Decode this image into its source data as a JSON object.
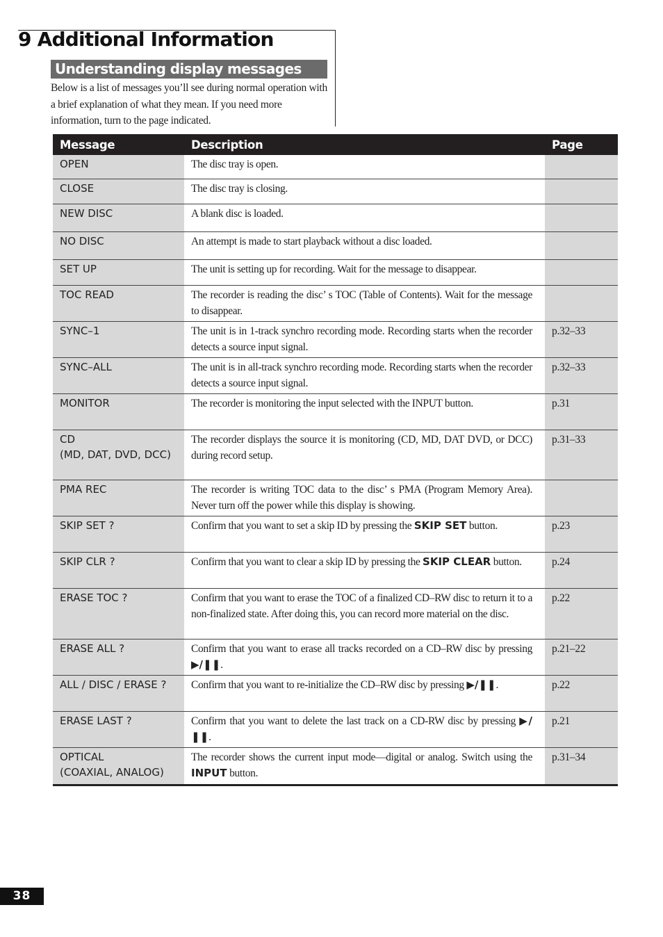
{
  "chapter_title": "9 Additional Information",
  "section_title": "Understanding display messages",
  "intro": "Below is a list of messages you’ll see during normal operation with a brief explanation of what they mean. If you need more information, turn to the page indicated.",
  "table": {
    "headers": {
      "message": "Message",
      "description": "Description",
      "page": "Page"
    },
    "rows": [
      {
        "message": "OPEN",
        "desc": "The disc tray is open.",
        "bold": "",
        "after": "",
        "page": ""
      },
      {
        "message": "CLOSE",
        "desc": "The disc tray is closing.",
        "bold": "",
        "after": "",
        "page": ""
      },
      {
        "message": "NEW DISC",
        "desc": "A blank disc is loaded.",
        "bold": "",
        "after": "",
        "page": ""
      },
      {
        "message": "NO DISC",
        "desc": "An attempt is made to start playback without a disc loaded.",
        "bold": "",
        "after": "",
        "page": ""
      },
      {
        "message": "SET UP",
        "desc": "The unit is setting up for recording. Wait for the message to disappear.",
        "bold": "",
        "after": "",
        "page": ""
      },
      {
        "message": "TOC READ",
        "desc": "The recorder is reading the disc’ s TOC (Table of Contents). Wait for the message to disappear.",
        "bold": "",
        "after": "",
        "page": ""
      },
      {
        "message": "SYNC–1",
        "desc": "The unit is in 1-track synchro recording mode. Recording starts when the recorder detects a source input signal.",
        "bold": "",
        "after": "",
        "page": "p.32–33"
      },
      {
        "message": "SYNC–ALL",
        "desc": "The unit is in all-track synchro recording mode. Recording starts when the recorder detects a source input signal.",
        "bold": "",
        "after": "",
        "page": "p.32–33"
      },
      {
        "message": "MONITOR",
        "desc": "The recorder is monitoring the input selected with the INPUT button.",
        "bold": "",
        "after": "",
        "page": "p.31"
      },
      {
        "message": "CD\n(MD, DAT, DVD, DCC)",
        "desc": "The recorder displays the source it is monitoring (CD, MD, DAT DVD, or DCC) during record setup.",
        "bold": "",
        "after": "",
        "page": "p.31–33"
      },
      {
        "message": "PMA REC",
        "desc": "The recorder is writing TOC data to the disc’ s PMA (Program Memory Area). Never turn off the power while this display is showing.",
        "bold": "",
        "after": "",
        "page": ""
      },
      {
        "message": "SKIP SET ?",
        "desc": "Confirm that you want to set a skip ID by pressing the ",
        "bold": "SKIP SET",
        "after": " button.",
        "page": "p.23"
      },
      {
        "message": "SKIP CLR ?",
        "desc": "Confirm that you want to clear a skip ID by pressing the ",
        "bold": "SKIP CLEAR",
        "after": " button.",
        "page": "p.24"
      },
      {
        "message": "ERASE TOC ?",
        "desc": "Confirm that you want to erase the TOC of a finalized CD–RW disc to return it to a non-finalized state. After doing this, you can record more material on the disc.",
        "bold": "",
        "after": "",
        "page": "p.22"
      },
      {
        "message": "ERASE ALL ?",
        "desc": "Confirm that you want to erase all tracks recorded on a CD–RW disc by pressing ",
        "bold": "▶/❚❚",
        "after": ".",
        "page": "p.21–22"
      },
      {
        "message": "ALL / DISC / ERASE ?",
        "desc": "Confirm that you want to re-initialize the CD–RW disc by pressing ",
        "bold": "▶/❚❚",
        "after": ".",
        "page": "p.22"
      },
      {
        "message": "ERASE LAST ?",
        "desc": "Confirm that you want to delete the last track on a CD-RW disc by pressing ",
        "bold": "▶/❚❚",
        "after": ".",
        "page": "p.21"
      },
      {
        "message": "OPTICAL\n(COAXIAL, ANALOG)",
        "desc": "The recorder shows the current input mode—digital or analog. Switch using the ",
        "bold": "INPUT",
        "after": " button.",
        "page": "p.31–34"
      }
    ]
  },
  "page_number": "38"
}
